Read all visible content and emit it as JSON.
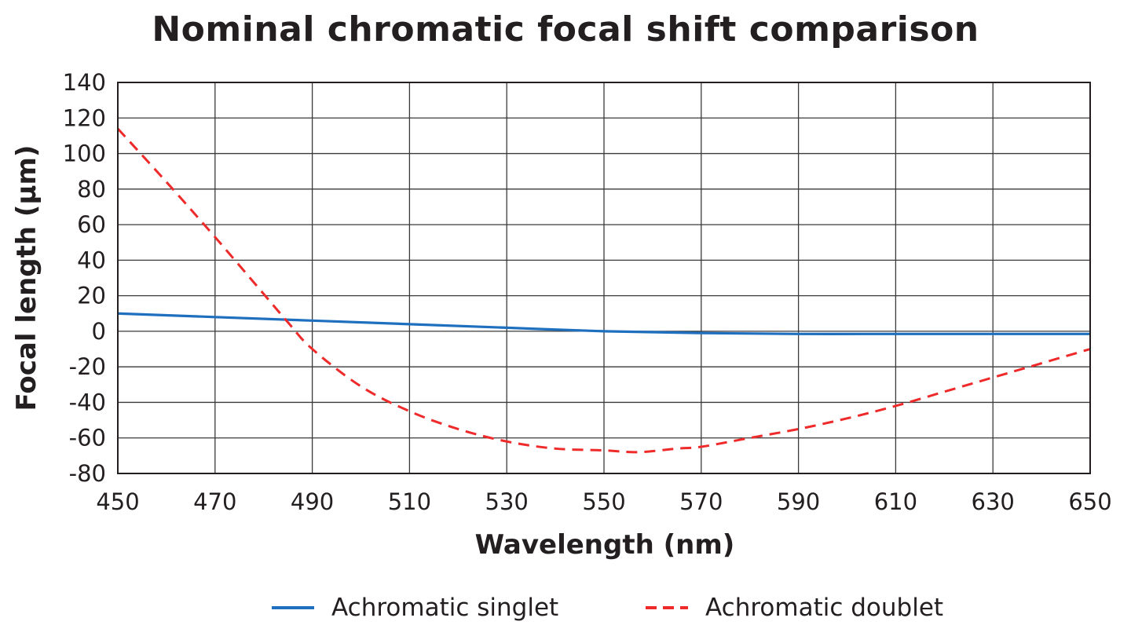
{
  "chart_data": {
    "type": "line",
    "title": "Nominal chromatic focal shift comparison",
    "xlabel": "Wavelength (nm)",
    "ylabel": "Focal length (µm)",
    "xlim": [
      450,
      650
    ],
    "ylim": [
      -80,
      140
    ],
    "x_ticks": [
      450,
      470,
      490,
      510,
      530,
      550,
      570,
      590,
      610,
      630,
      650
    ],
    "y_ticks": [
      140,
      120,
      100,
      80,
      60,
      40,
      20,
      0,
      -20,
      -40,
      -60,
      -80
    ],
    "grid": true,
    "legend_position": "bottom",
    "series": [
      {
        "name": "Achromatic singlet",
        "color": "#1f6fbf",
        "style": "solid",
        "x": [
          450,
          470,
          490,
          510,
          530,
          550,
          570,
          590,
          610,
          630,
          650
        ],
        "y": [
          10,
          8,
          6,
          4,
          2,
          0,
          -1,
          -1.5,
          -1.5,
          -1.5,
          -1.5
        ]
      },
      {
        "name": "Achromatic doublet",
        "color": "#ee2a2a",
        "style": "dashed",
        "x": [
          450,
          460,
          470,
          480,
          485,
          490,
          500,
          510,
          520,
          530,
          540,
          550,
          557,
          565,
          570,
          580,
          590,
          600,
          610,
          620,
          630,
          640,
          650
        ],
        "y": [
          114,
          84,
          53,
          21,
          5,
          -10,
          -31,
          -45,
          -55,
          -62,
          -66,
          -67,
          -68,
          -66,
          -65,
          -60,
          -55,
          -49,
          -42,
          -34,
          -26,
          -18,
          -10
        ]
      }
    ]
  }
}
